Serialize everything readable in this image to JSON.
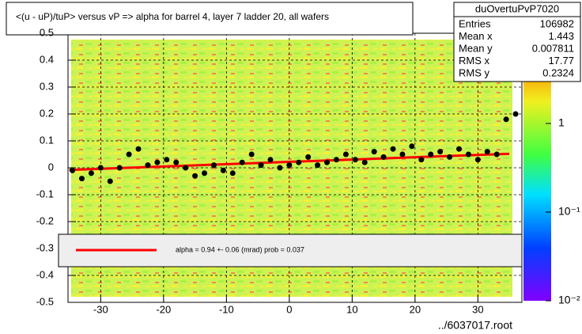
{
  "chart_data": {
    "type": "scatter",
    "title": "<(u - uP)/tuP> versus  vP => alpha for barrel 4, layer 7 ladder 20, all wafers",
    "x": [
      -34.5,
      -33,
      -31.5,
      -30,
      -28.5,
      -27,
      -25.5,
      -24,
      -22.5,
      -21,
      -19.5,
      -18,
      -16.5,
      -15,
      -13.5,
      -12,
      -10.5,
      -9,
      -7.5,
      -6,
      -4.5,
      -3,
      -1.5,
      0,
      1.5,
      3,
      4.5,
      6,
      7.5,
      9,
      10.5,
      12,
      13.5,
      15,
      16.5,
      18,
      19.5,
      21,
      22.5,
      24,
      25.5,
      27,
      28.5,
      30,
      31.5,
      33,
      34.5,
      36
    ],
    "values": [
      -0.01,
      -0.04,
      -0.02,
      0.0,
      -0.05,
      0.0,
      0.05,
      0.07,
      0.01,
      0.02,
      0.03,
      0.02,
      0.0,
      -0.03,
      -0.02,
      0.01,
      -0.01,
      -0.02,
      0.02,
      0.05,
      0.01,
      0.03,
      0.0,
      0.01,
      0.02,
      0.04,
      0.01,
      0.02,
      0.03,
      0.05,
      0.03,
      0.02,
      0.06,
      0.04,
      0.07,
      0.05,
      0.08,
      0.03,
      0.05,
      0.06,
      0.04,
      0.07,
      0.05,
      0.03,
      0.06,
      0.05,
      0.18,
      0.2
    ],
    "color": "#000000",
    "fit": {
      "x": [
        -35,
        35
      ],
      "values": [
        -0.008,
        0.052
      ],
      "color": "#ff0000",
      "label": "alpha =     0.94 +-  0.06 (mrad) prob = 0.037"
    },
    "xlim": [
      -35.2,
      37
    ],
    "ylim": [
      -0.5,
      0.5
    ],
    "xticks": [
      -30,
      -20,
      -10,
      0,
      10,
      20,
      30
    ],
    "yticks": [
      -0.5,
      -0.4,
      -0.3,
      -0.2,
      -0.1,
      0,
      0.1,
      0.2,
      0.3,
      0.4,
      0.5
    ],
    "grid": true,
    "zlim": [
      0.01,
      10
    ],
    "zlog": true,
    "zticks": [
      {
        "value": 1,
        "label": "1"
      },
      {
        "value": 0.1,
        "label": "10⁻¹"
      },
      {
        "value": 0.01,
        "label": "10⁻²"
      }
    ],
    "stats": {
      "name": "duOvertuPvP7020",
      "rows": [
        [
          "Entries",
          "106982"
        ],
        [
          "Mean x",
          "1.443"
        ],
        [
          "Mean y",
          "0.007811"
        ],
        [
          "RMS x",
          "17.77"
        ],
        [
          "RMS y",
          "0.2324"
        ]
      ]
    },
    "footer": "../6037017.root"
  }
}
